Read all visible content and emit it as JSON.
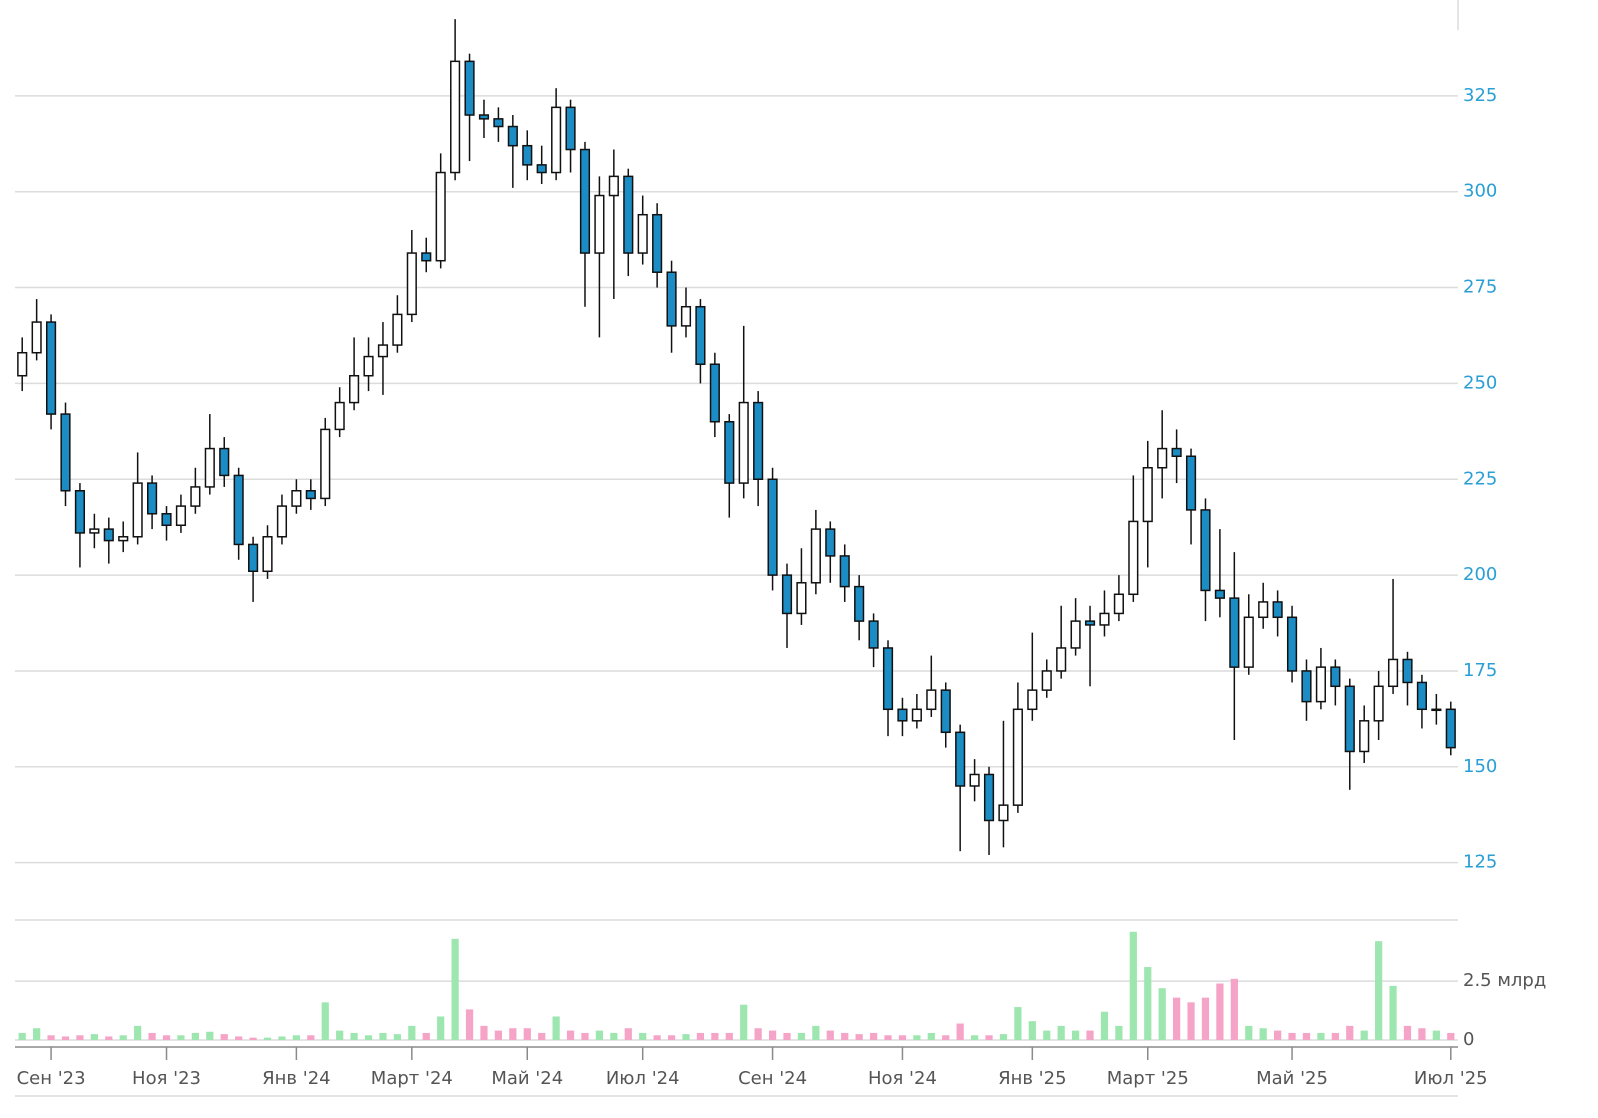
{
  "chart_data": {
    "type": "candlestick",
    "categories": [
      null,
      null,
      "Сен '23",
      null,
      null,
      null,
      null,
      null,
      null,
      null,
      "Ноя '23",
      null,
      null,
      null,
      null,
      null,
      null,
      null,
      null,
      "Янв '24",
      null,
      null,
      null,
      null,
      null,
      null,
      null,
      "Март '24",
      null,
      null,
      null,
      null,
      null,
      null,
      null,
      "Май '24",
      null,
      null,
      null,
      null,
      null,
      null,
      null,
      "Июл '24",
      null,
      null,
      null,
      null,
      null,
      null,
      null,
      null,
      "Сен '24",
      null,
      null,
      null,
      null,
      null,
      null,
      null,
      null,
      "Ноя '24",
      null,
      null,
      null,
      null,
      null,
      null,
      null,
      null,
      "Янв '25",
      null,
      null,
      null,
      null,
      null,
      null,
      null,
      "Март '25",
      null,
      null,
      null,
      null,
      null,
      null,
      null,
      null,
      null,
      "Май '25",
      null,
      null,
      null,
      null,
      null,
      null,
      null,
      null,
      null,
      null,
      "Июл '25"
    ],
    "open": [
      252,
      258,
      266,
      242,
      222,
      211,
      212,
      209,
      210,
      224,
      216,
      213,
      218,
      223,
      233,
      226,
      208,
      201,
      210,
      218,
      222,
      220,
      238,
      245,
      252,
      257,
      260,
      268,
      284,
      282,
      305,
      334,
      320,
      319,
      317,
      312,
      307,
      305,
      322,
      311,
      284,
      299,
      304,
      284,
      294,
      279,
      265,
      270,
      255,
      240,
      224,
      245,
      225,
      200,
      190,
      198,
      212,
      205,
      197,
      188,
      181,
      165,
      162,
      165,
      170,
      159,
      145,
      148,
      136,
      140,
      165,
      170,
      175,
      181,
      188,
      187,
      190,
      195,
      214,
      228,
      233,
      231,
      217,
      196,
      194,
      176,
      189,
      193,
      189,
      175,
      167,
      176,
      171,
      154,
      162,
      171,
      178,
      172,
      165,
      165
    ],
    "high": [
      262,
      272,
      268,
      245,
      224,
      216,
      215,
      214,
      232,
      226,
      218,
      221,
      228,
      242,
      236,
      228,
      210,
      213,
      221,
      225,
      225,
      241,
      249,
      262,
      262,
      266,
      273,
      290,
      288,
      310,
      345,
      336,
      324,
      322,
      320,
      316,
      312,
      327,
      324,
      313,
      304,
      311,
      306,
      299,
      297,
      282,
      275,
      272,
      258,
      242,
      265,
      248,
      228,
      203,
      207,
      217,
      214,
      208,
      200,
      190,
      183,
      168,
      169,
      179,
      172,
      161,
      152,
      150,
      162,
      172,
      185,
      178,
      192,
      194,
      192,
      196,
      200,
      226,
      235,
      243,
      238,
      233,
      220,
      212,
      206,
      195,
      198,
      196,
      192,
      178,
      181,
      178,
      173,
      166,
      175,
      199,
      180,
      174,
      169,
      167
    ],
    "low": [
      248,
      256,
      238,
      218,
      202,
      207,
      203,
      206,
      208,
      212,
      209,
      211,
      216,
      221,
      223,
      204,
      193,
      199,
      208,
      216,
      217,
      218,
      236,
      243,
      248,
      247,
      258,
      266,
      279,
      280,
      303,
      308,
      314,
      313,
      301,
      303,
      302,
      303,
      305,
      270,
      262,
      272,
      278,
      281,
      275,
      258,
      262,
      250,
      236,
      215,
      220,
      218,
      196,
      181,
      187,
      195,
      198,
      193,
      183,
      176,
      158,
      158,
      160,
      163,
      155,
      128,
      141,
      127,
      129,
      138,
      162,
      168,
      173,
      179,
      171,
      184,
      188,
      193,
      202,
      220,
      224,
      208,
      188,
      189,
      157,
      174,
      186,
      184,
      172,
      162,
      165,
      166,
      144,
      151,
      157,
      169,
      166,
      160,
      161,
      153
    ],
    "close": [
      258,
      266,
      242,
      222,
      211,
      212,
      209,
      210,
      224,
      216,
      213,
      218,
      223,
      233,
      226,
      208,
      201,
      210,
      218,
      222,
      220,
      238,
      245,
      252,
      257,
      260,
      268,
      284,
      282,
      305,
      334,
      320,
      319,
      317,
      312,
      307,
      305,
      322,
      311,
      284,
      299,
      304,
      284,
      294,
      279,
      265,
      270,
      255,
      240,
      224,
      245,
      225,
      200,
      190,
      198,
      212,
      205,
      197,
      188,
      181,
      165,
      162,
      165,
      170,
      159,
      145,
      148,
      136,
      140,
      165,
      170,
      175,
      181,
      188,
      187,
      190,
      195,
      214,
      228,
      233,
      231,
      217,
      196,
      194,
      176,
      189,
      193,
      189,
      175,
      167,
      176,
      171,
      154,
      162,
      171,
      178,
      172,
      165,
      165,
      155
    ],
    "volume": [
      0.3,
      0.5,
      0.2,
      0.15,
      0.2,
      0.25,
      0.15,
      0.2,
      0.6,
      0.3,
      0.2,
      0.2,
      0.3,
      0.35,
      0.25,
      0.15,
      0.1,
      0.1,
      0.15,
      0.2,
      0.2,
      1.6,
      0.4,
      0.3,
      0.2,
      0.3,
      0.25,
      0.6,
      0.3,
      1.0,
      4.3,
      1.3,
      0.6,
      0.4,
      0.5,
      0.5,
      0.3,
      1.0,
      0.4,
      0.3,
      0.4,
      0.3,
      0.5,
      0.3,
      0.2,
      0.2,
      0.25,
      0.3,
      0.3,
      0.3,
      1.5,
      0.5,
      0.4,
      0.3,
      0.3,
      0.6,
      0.4,
      0.3,
      0.25,
      0.3,
      0.2,
      0.2,
      0.2,
      0.3,
      0.2,
      0.7,
      0.2,
      0.2,
      0.25,
      1.4,
      0.8,
      0.4,
      0.6,
      0.4,
      0.4,
      1.2,
      0.6,
      4.6,
      3.1,
      2.2,
      1.8,
      1.6,
      1.8,
      2.4,
      2.6,
      0.6,
      0.5,
      0.4,
      0.3,
      0.3,
      0.3,
      0.3,
      0.6,
      0.4,
      4.2,
      2.3,
      0.6,
      0.5,
      0.4,
      0.3
    ],
    "up_color": "#ffffff",
    "down_color": "#1b8cc4",
    "volume_up_color": "#9ee6b0",
    "volume_down_color": "#f5a3c7",
    "ylim": [
      115,
      350
    ],
    "yticks": [
      125,
      150,
      175,
      200,
      225,
      250,
      275,
      300,
      325
    ],
    "vylim": [
      0,
      5.1
    ],
    "vyticks": [
      0,
      {
        "value": 2.5,
        "label": "2.5 млрд"
      }
    ],
    "grid": true
  }
}
